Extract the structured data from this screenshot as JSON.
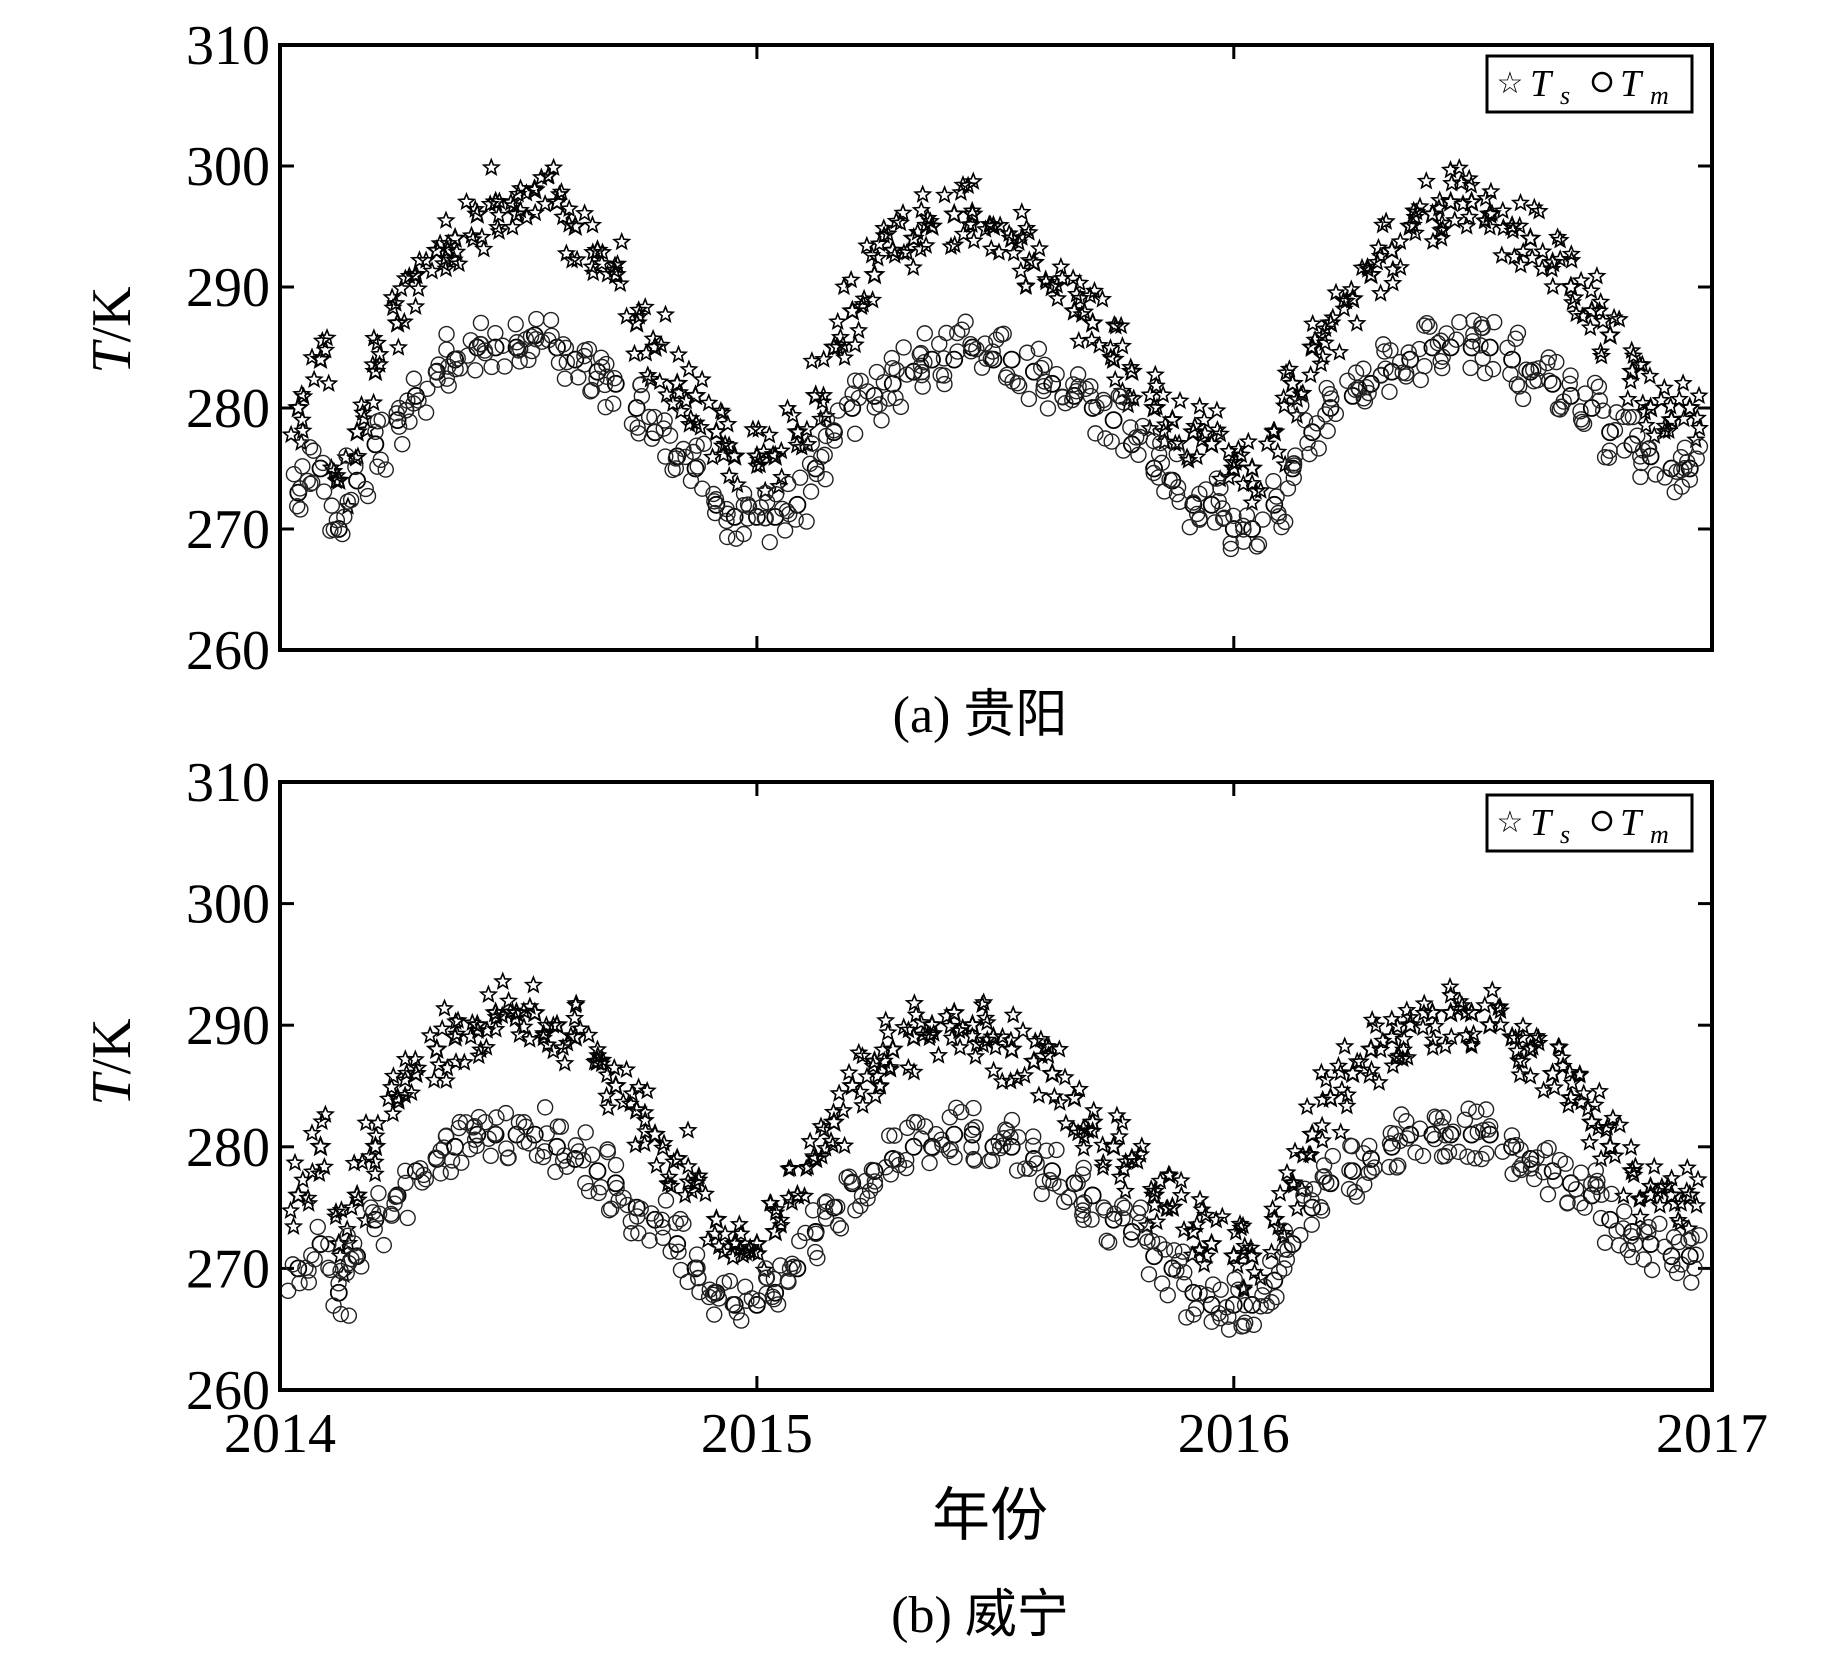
{
  "chart_data": [
    {
      "type": "scatter",
      "caption": "(a) 贵阳",
      "ylabel_main": "T",
      "ylabel_unit": "/K",
      "xlabel": "",
      "ylim": [
        260,
        310
      ],
      "yticks": [
        260,
        270,
        280,
        290,
        300,
        310
      ],
      "xlim": [
        "2014-01-01",
        "2017-01-01"
      ],
      "xticks": [
        "2014",
        "2015",
        "2016",
        "2017"
      ],
      "xtick_labels_shown": false,
      "grid": false,
      "legend_position": "top-right",
      "series": [
        {
          "name": "Ts",
          "marker": "star",
          "x": [
            "2014-01-15",
            "2014-02-01",
            "2014-02-15",
            "2014-03-01",
            "2014-03-15",
            "2014-04-01",
            "2014-04-15",
            "2014-05-01",
            "2014-05-15",
            "2014-06-01",
            "2014-06-15",
            "2014-07-01",
            "2014-07-15",
            "2014-08-01",
            "2014-08-15",
            "2014-09-01",
            "2014-09-15",
            "2014-10-01",
            "2014-10-15",
            "2014-11-01",
            "2014-11-15",
            "2014-12-01",
            "2014-12-15",
            "2015-01-01",
            "2015-01-15",
            "2015-02-01",
            "2015-02-15",
            "2015-03-01",
            "2015-03-15",
            "2015-04-01",
            "2015-04-15",
            "2015-05-01",
            "2015-05-15",
            "2015-06-01",
            "2015-06-15",
            "2015-07-01",
            "2015-07-15",
            "2015-08-01",
            "2015-08-15",
            "2015-09-01",
            "2015-09-15",
            "2015-10-01",
            "2015-10-15",
            "2015-11-01",
            "2015-11-15",
            "2015-12-01",
            "2015-12-15",
            "2016-01-01",
            "2016-01-15",
            "2016-02-01",
            "2016-02-15",
            "2016-03-01",
            "2016-03-15",
            "2016-04-01",
            "2016-04-15",
            "2016-05-01",
            "2016-05-15",
            "2016-06-01",
            "2016-06-15",
            "2016-07-01",
            "2016-07-15",
            "2016-08-01",
            "2016-08-15",
            "2016-09-01",
            "2016-09-15",
            "2016-10-01",
            "2016-10-15",
            "2016-11-01",
            "2016-11-15",
            "2016-12-01",
            "2016-12-15"
          ],
          "y": [
            280,
            284,
            274,
            278,
            283,
            287,
            291,
            293,
            294,
            296,
            297,
            296,
            298,
            297,
            295,
            293,
            291,
            287,
            285,
            282,
            281,
            278,
            276,
            276,
            276,
            278,
            281,
            285,
            288,
            291,
            293,
            294,
            295,
            296,
            296,
            295,
            294,
            292,
            290,
            288,
            287,
            284,
            283,
            280,
            279,
            278,
            277,
            275,
            275,
            278,
            282,
            285,
            287,
            289,
            291,
            293,
            295,
            296,
            297,
            297,
            296,
            295,
            294,
            292,
            290,
            288,
            286,
            283,
            280,
            279,
            280
          ]
        },
        {
          "name": "Tm",
          "marker": "circle",
          "x": [
            "2014-01-15",
            "2014-02-01",
            "2014-02-15",
            "2014-03-01",
            "2014-03-15",
            "2014-04-01",
            "2014-04-15",
            "2014-05-01",
            "2014-05-15",
            "2014-06-01",
            "2014-06-15",
            "2014-07-01",
            "2014-07-15",
            "2014-08-01",
            "2014-08-15",
            "2014-09-01",
            "2014-09-15",
            "2014-10-01",
            "2014-10-15",
            "2014-11-01",
            "2014-11-15",
            "2014-12-01",
            "2014-12-15",
            "2015-01-01",
            "2015-01-15",
            "2015-02-01",
            "2015-02-15",
            "2015-03-01",
            "2015-03-15",
            "2015-04-01",
            "2015-04-15",
            "2015-05-01",
            "2015-05-15",
            "2015-06-01",
            "2015-06-15",
            "2015-07-01",
            "2015-07-15",
            "2015-08-01",
            "2015-08-15",
            "2015-09-01",
            "2015-09-15",
            "2015-10-01",
            "2015-10-15",
            "2015-11-01",
            "2015-11-15",
            "2015-12-01",
            "2015-12-15",
            "2016-01-01",
            "2016-01-15",
            "2016-02-01",
            "2016-02-15",
            "2016-03-01",
            "2016-03-15",
            "2016-04-01",
            "2016-04-15",
            "2016-05-01",
            "2016-05-15",
            "2016-06-01",
            "2016-06-15",
            "2016-07-01",
            "2016-07-15",
            "2016-08-01",
            "2016-08-15",
            "2016-09-01",
            "2016-09-15",
            "2016-10-01",
            "2016-10-15",
            "2016-11-01",
            "2016-11-15",
            "2016-12-01",
            "2016-12-15"
          ],
          "y": [
            273,
            275,
            270,
            274,
            277,
            279,
            281,
            283,
            284,
            285,
            285,
            285,
            286,
            285,
            284,
            283,
            282,
            280,
            278,
            276,
            275,
            272,
            271,
            271,
            271,
            272,
            275,
            278,
            280,
            281,
            282,
            283,
            284,
            284,
            285,
            284,
            284,
            283,
            282,
            281,
            280,
            279,
            277,
            275,
            274,
            272,
            272,
            270,
            270,
            272,
            275,
            278,
            280,
            281,
            282,
            283,
            284,
            285,
            285,
            285,
            285,
            284,
            283,
            282,
            281,
            280,
            278,
            277,
            276,
            275,
            275
          ]
        }
      ]
    },
    {
      "type": "scatter",
      "caption": "(b) 威宁",
      "ylabel_main": "T",
      "ylabel_unit": "/K",
      "xlabel": "年份",
      "ylim": [
        260,
        310
      ],
      "yticks": [
        260,
        270,
        280,
        290,
        300,
        310
      ],
      "xlim": [
        "2014-01-01",
        "2017-01-01"
      ],
      "xticks": [
        "2014",
        "2015",
        "2016",
        "2017"
      ],
      "xtick_labels_shown": true,
      "grid": false,
      "legend_position": "top-right",
      "series": [
        {
          "name": "Ts",
          "marker": "star",
          "x": [
            "2014-01-15",
            "2014-02-01",
            "2014-02-15",
            "2014-03-01",
            "2014-03-15",
            "2014-04-01",
            "2014-04-15",
            "2014-05-01",
            "2014-05-15",
            "2014-06-01",
            "2014-06-15",
            "2014-07-01",
            "2014-07-15",
            "2014-08-01",
            "2014-08-15",
            "2014-09-01",
            "2014-09-15",
            "2014-10-01",
            "2014-10-15",
            "2014-11-01",
            "2014-11-15",
            "2014-12-01",
            "2014-12-15",
            "2015-01-01",
            "2015-01-15",
            "2015-02-01",
            "2015-02-15",
            "2015-03-01",
            "2015-03-15",
            "2015-04-01",
            "2015-04-15",
            "2015-05-01",
            "2015-05-15",
            "2015-06-01",
            "2015-06-15",
            "2015-07-01",
            "2015-07-15",
            "2015-08-01",
            "2015-08-15",
            "2015-09-01",
            "2015-09-15",
            "2015-10-01",
            "2015-10-15",
            "2015-11-01",
            "2015-11-15",
            "2015-12-01",
            "2015-12-15",
            "2016-01-01",
            "2016-01-15",
            "2016-02-01",
            "2016-02-15",
            "2016-03-01",
            "2016-03-15",
            "2016-04-01",
            "2016-04-15",
            "2016-05-01",
            "2016-05-15",
            "2016-06-01",
            "2016-06-15",
            "2016-07-01",
            "2016-07-15",
            "2016-08-01",
            "2016-08-15",
            "2016-09-01",
            "2016-09-15",
            "2016-10-01",
            "2016-10-15",
            "2016-11-01",
            "2016-11-15",
            "2016-12-01",
            "2016-12-15"
          ],
          "y": [
            276,
            280,
            272,
            276,
            280,
            284,
            286,
            288,
            289,
            290,
            291,
            291,
            291,
            290,
            289,
            287,
            285,
            283,
            281,
            279,
            277,
            274,
            272,
            272,
            273,
            276,
            279,
            282,
            285,
            287,
            288,
            289,
            290,
            291,
            290,
            289,
            288,
            287,
            286,
            284,
            282,
            280,
            279,
            276,
            275,
            273,
            272,
            271,
            271,
            274,
            277,
            281,
            284,
            286,
            288,
            289,
            290,
            291,
            291,
            291,
            290,
            289,
            288,
            286,
            284,
            282,
            280,
            278,
            276,
            276,
            276
          ]
        },
        {
          "name": "Tm",
          "marker": "circle",
          "x": [
            "2014-01-15",
            "2014-02-01",
            "2014-02-15",
            "2014-03-01",
            "2014-03-15",
            "2014-04-01",
            "2014-04-15",
            "2014-05-01",
            "2014-05-15",
            "2014-06-01",
            "2014-06-15",
            "2014-07-01",
            "2014-07-15",
            "2014-08-01",
            "2014-08-15",
            "2014-09-01",
            "2014-09-15",
            "2014-10-01",
            "2014-10-15",
            "2014-11-01",
            "2014-11-15",
            "2014-12-01",
            "2014-12-15",
            "2015-01-01",
            "2015-01-15",
            "2015-02-01",
            "2015-02-15",
            "2015-03-01",
            "2015-03-15",
            "2015-04-01",
            "2015-04-15",
            "2015-05-01",
            "2015-05-15",
            "2015-06-01",
            "2015-06-15",
            "2015-07-01",
            "2015-07-15",
            "2015-08-01",
            "2015-08-15",
            "2015-09-01",
            "2015-09-15",
            "2015-10-01",
            "2015-10-15",
            "2015-11-01",
            "2015-11-15",
            "2015-12-01",
            "2015-12-15",
            "2016-01-01",
            "2016-01-15",
            "2016-02-01",
            "2016-02-15",
            "2016-03-01",
            "2016-03-15",
            "2016-04-01",
            "2016-04-15",
            "2016-05-01",
            "2016-05-15",
            "2016-06-01",
            "2016-06-15",
            "2016-07-01",
            "2016-07-15",
            "2016-08-01",
            "2016-08-15",
            "2016-09-01",
            "2016-09-15",
            "2016-10-01",
            "2016-10-15",
            "2016-11-01",
            "2016-11-15",
            "2016-12-01",
            "2016-12-15"
          ],
          "y": [
            270,
            272,
            268,
            271,
            274,
            276,
            278,
            279,
            280,
            281,
            281,
            281,
            281,
            280,
            279,
            278,
            277,
            275,
            274,
            272,
            270,
            268,
            267,
            267,
            268,
            270,
            273,
            275,
            277,
            278,
            279,
            280,
            280,
            281,
            281,
            280,
            280,
            279,
            278,
            277,
            276,
            274,
            273,
            271,
            270,
            268,
            267,
            267,
            267,
            269,
            272,
            275,
            277,
            278,
            279,
            280,
            281,
            281,
            281,
            281,
            281,
            280,
            279,
            278,
            277,
            276,
            274,
            273,
            272,
            271,
            271
          ]
        }
      ]
    }
  ]
}
